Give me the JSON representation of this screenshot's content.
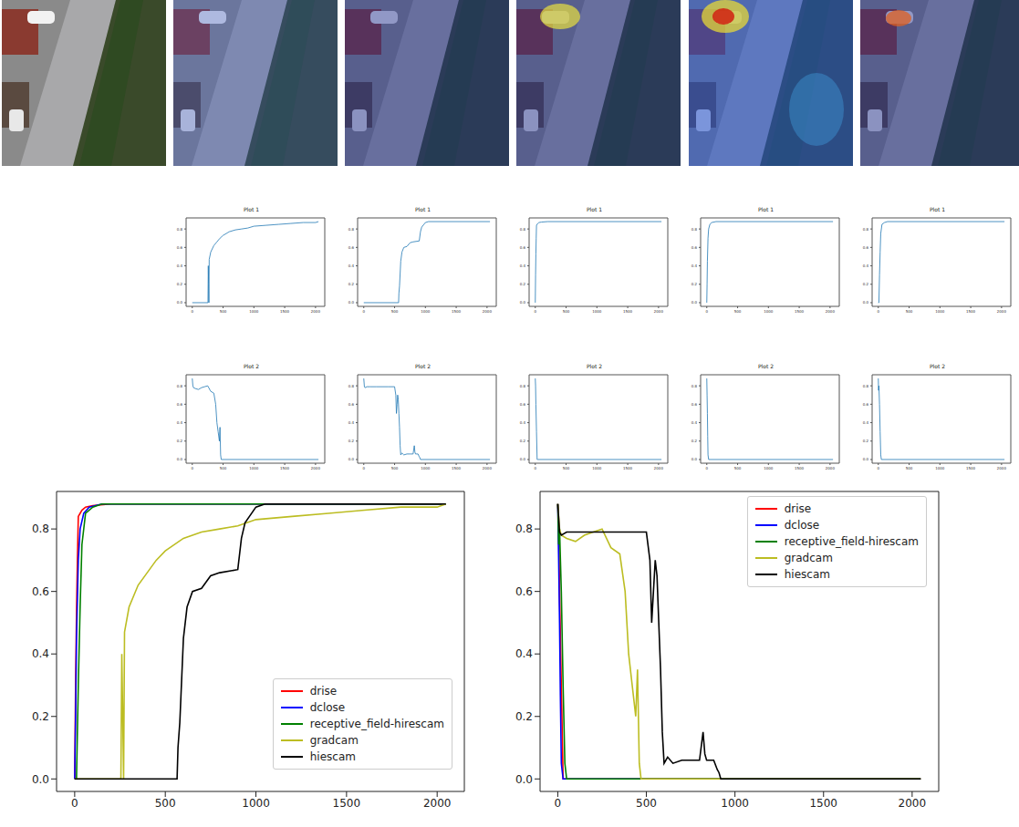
{
  "chart_data": [
    {
      "type": "line",
      "title": "Plot 1",
      "color": "#1f77b4",
      "xlim": [
        -100,
        2150
      ],
      "ylim": [
        -0.04,
        0.92
      ],
      "xticks": [
        0,
        500,
        1000,
        1500,
        2000
      ],
      "yticks": [
        {
          "value": 0,
          "label": "0.0"
        },
        {
          "value": 0.2,
          "label": "0.2"
        },
        {
          "value": 0.4,
          "label": "0.4"
        },
        {
          "value": 0.6,
          "label": "0.6"
        },
        {
          "value": 0.8,
          "label": "0.8"
        }
      ],
      "x": [
        0,
        255,
        260,
        265,
        270,
        275,
        300,
        350,
        400,
        450,
        500,
        600,
        700,
        800,
        900,
        1000,
        1200,
        1400,
        1600,
        1800,
        2000,
        2048
      ],
      "values": [
        0,
        0,
        0.4,
        0.2,
        0,
        0.47,
        0.55,
        0.62,
        0.66,
        0.7,
        0.73,
        0.77,
        0.79,
        0.8,
        0.81,
        0.83,
        0.84,
        0.85,
        0.86,
        0.87,
        0.87,
        0.88
      ]
    },
    {
      "type": "line",
      "title": "Plot 1",
      "color": "#1f77b4",
      "xlim": [
        -100,
        2150
      ],
      "ylim": [
        -0.04,
        0.92
      ],
      "xticks": [
        0,
        500,
        1000,
        1500,
        2000
      ],
      "yticks": [
        {
          "value": 0,
          "label": "0.0"
        },
        {
          "value": 0.2,
          "label": "0.2"
        },
        {
          "value": 0.4,
          "label": "0.4"
        },
        {
          "value": 0.6,
          "label": "0.6"
        },
        {
          "value": 0.8,
          "label": "0.8"
        }
      ],
      "x": [
        0,
        565,
        570,
        580,
        600,
        620,
        650,
        700,
        750,
        800,
        900,
        920,
        940,
        1000,
        1050,
        2048
      ],
      "values": [
        0,
        0,
        0.1,
        0.18,
        0.45,
        0.55,
        0.6,
        0.61,
        0.65,
        0.66,
        0.67,
        0.77,
        0.82,
        0.87,
        0.88,
        0.88
      ]
    },
    {
      "type": "line",
      "title": "Plot 1",
      "color": "#1f77b4",
      "xlim": [
        -100,
        2150
      ],
      "ylim": [
        -0.04,
        0.92
      ],
      "xticks": [
        0,
        500,
        1000,
        1500,
        2000
      ],
      "yticks": [
        {
          "value": 0,
          "label": "0.0"
        },
        {
          "value": 0.2,
          "label": "0.2"
        },
        {
          "value": 0.4,
          "label": "0.4"
        },
        {
          "value": 0.6,
          "label": "0.6"
        },
        {
          "value": 0.8,
          "label": "0.8"
        }
      ],
      "x": [
        0,
        5,
        10,
        15,
        20,
        30,
        40,
        60,
        100,
        200,
        2048
      ],
      "values": [
        0,
        0.3,
        0.53,
        0.7,
        0.84,
        0.85,
        0.86,
        0.87,
        0.875,
        0.88,
        0.88
      ]
    },
    {
      "type": "line",
      "title": "Plot 1",
      "color": "#1f77b4",
      "xlim": [
        -100,
        2150
      ],
      "ylim": [
        -0.04,
        0.92
      ],
      "xticks": [
        0,
        500,
        1000,
        1500,
        2000
      ],
      "yticks": [
        {
          "value": 0,
          "label": "0.0"
        },
        {
          "value": 0.2,
          "label": "0.2"
        },
        {
          "value": 0.4,
          "label": "0.4"
        },
        {
          "value": 0.6,
          "label": "0.6"
        },
        {
          "value": 0.8,
          "label": "0.8"
        }
      ],
      "x": [
        0,
        5,
        10,
        20,
        30,
        50,
        80,
        150,
        2048
      ],
      "values": [
        0,
        0.2,
        0.45,
        0.7,
        0.8,
        0.85,
        0.87,
        0.88,
        0.88
      ]
    },
    {
      "type": "line",
      "title": "Plot 1",
      "color": "#1f77b4",
      "xlim": [
        -100,
        2150
      ],
      "ylim": [
        -0.04,
        0.92
      ],
      "xticks": [
        0,
        500,
        1000,
        1500,
        2000
      ],
      "yticks": [
        {
          "value": 0,
          "label": "0.0"
        },
        {
          "value": 0.2,
          "label": "0.2"
        },
        {
          "value": 0.4,
          "label": "0.4"
        },
        {
          "value": 0.6,
          "label": "0.6"
        },
        {
          "value": 0.8,
          "label": "0.8"
        }
      ],
      "x": [
        0,
        10,
        20,
        30,
        40,
        60,
        100,
        150,
        2048
      ],
      "values": [
        0,
        0,
        0.3,
        0.55,
        0.75,
        0.85,
        0.87,
        0.88,
        0.88
      ]
    },
    {
      "type": "line",
      "title": "Plot 2",
      "color": "#1f77b4",
      "xlim": [
        -100,
        2150
      ],
      "ylim": [
        -0.04,
        0.92
      ],
      "xticks": [
        0,
        500,
        1000,
        1500,
        2000
      ],
      "yticks": [
        {
          "value": 0,
          "label": "0.0"
        },
        {
          "value": 0.2,
          "label": "0.2"
        },
        {
          "value": 0.4,
          "label": "0.4"
        },
        {
          "value": 0.6,
          "label": "0.6"
        },
        {
          "value": 0.8,
          "label": "0.8"
        }
      ],
      "x": [
        0,
        10,
        20,
        50,
        100,
        150,
        200,
        250,
        300,
        350,
        380,
        400,
        420,
        440,
        450,
        460,
        470,
        2048
      ],
      "values": [
        0.88,
        0.8,
        0.78,
        0.77,
        0.76,
        0.78,
        0.79,
        0.8,
        0.74,
        0.72,
        0.6,
        0.4,
        0.3,
        0.2,
        0.35,
        0.05,
        0,
        0
      ]
    },
    {
      "type": "line",
      "title": "Plot 2",
      "color": "#1f77b4",
      "xlim": [
        -100,
        2150
      ],
      "ylim": [
        -0.04,
        0.92
      ],
      "xticks": [
        0,
        500,
        1000,
        1500,
        2000
      ],
      "yticks": [
        {
          "value": 0,
          "label": "0.0"
        },
        {
          "value": 0.2,
          "label": "0.2"
        },
        {
          "value": 0.4,
          "label": "0.4"
        },
        {
          "value": 0.6,
          "label": "0.6"
        },
        {
          "value": 0.8,
          "label": "0.8"
        }
      ],
      "x": [
        0,
        10,
        20,
        50,
        100,
        200,
        300,
        400,
        500,
        520,
        530,
        540,
        550,
        560,
        570,
        580,
        590,
        600,
        620,
        650,
        700,
        750,
        800,
        820,
        830,
        840,
        850,
        880,
        900,
        910,
        920,
        2048
      ],
      "values": [
        0.88,
        0.79,
        0.78,
        0.79,
        0.79,
        0.79,
        0.79,
        0.79,
        0.79,
        0.7,
        0.5,
        0.6,
        0.7,
        0.65,
        0.5,
        0.35,
        0.15,
        0.05,
        0.07,
        0.05,
        0.06,
        0.06,
        0.06,
        0.15,
        0.08,
        0.06,
        0.06,
        0.06,
        0.03,
        0.02,
        0,
        0
      ]
    },
    {
      "type": "line",
      "title": "Plot 2",
      "color": "#1f77b4",
      "xlim": [
        -100,
        2150
      ],
      "ylim": [
        -0.04,
        0.92
      ],
      "xticks": [
        0,
        500,
        1000,
        1500,
        2000
      ],
      "yticks": [
        {
          "value": 0,
          "label": "0.0"
        },
        {
          "value": 0.2,
          "label": "0.2"
        },
        {
          "value": 0.4,
          "label": "0.4"
        },
        {
          "value": 0.6,
          "label": "0.6"
        },
        {
          "value": 0.8,
          "label": "0.8"
        }
      ],
      "x": [
        0,
        5,
        10,
        20,
        30,
        40,
        2048
      ],
      "values": [
        0.88,
        0.8,
        0.6,
        0.3,
        0,
        0,
        0
      ]
    },
    {
      "type": "line",
      "title": "Plot 2",
      "color": "#1f77b4",
      "xlim": [
        -100,
        2150
      ],
      "ylim": [
        -0.04,
        0.92
      ],
      "xticks": [
        0,
        500,
        1000,
        1500,
        2000
      ],
      "yticks": [
        {
          "value": 0,
          "label": "0.0"
        },
        {
          "value": 0.2,
          "label": "0.2"
        },
        {
          "value": 0.4,
          "label": "0.4"
        },
        {
          "value": 0.6,
          "label": "0.6"
        },
        {
          "value": 0.8,
          "label": "0.8"
        }
      ],
      "x": [
        0,
        5,
        10,
        15,
        20,
        30,
        2048
      ],
      "values": [
        0.88,
        0.7,
        0.5,
        0.25,
        0.05,
        0,
        0
      ]
    },
    {
      "type": "line",
      "title": "Plot 2",
      "color": "#1f77b4",
      "xlim": [
        -100,
        2150
      ],
      "ylim": [
        -0.04,
        0.92
      ],
      "xticks": [
        0,
        500,
        1000,
        1500,
        2000
      ],
      "yticks": [
        {
          "value": 0,
          "label": "0.0"
        },
        {
          "value": 0.2,
          "label": "0.2"
        },
        {
          "value": 0.4,
          "label": "0.4"
        },
        {
          "value": 0.6,
          "label": "0.6"
        },
        {
          "value": 0.8,
          "label": "0.8"
        }
      ],
      "x": [
        0,
        5,
        10,
        20,
        30,
        40,
        50,
        2048
      ],
      "values": [
        0.88,
        0.75,
        0.8,
        0.6,
        0.3,
        0.05,
        0,
        0
      ]
    },
    {
      "type": "line",
      "legend": "lower right",
      "xlim": [
        -100,
        2150
      ],
      "ylim": [
        -0.04,
        0.92
      ],
      "xticks": [
        0,
        500,
        1000,
        1500,
        2000
      ],
      "yticks": [
        {
          "value": 0,
          "label": "0.0"
        },
        {
          "value": 0.2,
          "label": "0.2"
        },
        {
          "value": 0.4,
          "label": "0.4"
        },
        {
          "value": 0.6,
          "label": "0.6"
        },
        {
          "value": 0.8,
          "label": "0.8"
        }
      ],
      "series": [
        {
          "name": "drise",
          "color": "red",
          "x": [
            0,
            5,
            10,
            15,
            20,
            30,
            40,
            60,
            100,
            200,
            2048
          ],
          "values": [
            0,
            0.3,
            0.53,
            0.7,
            0.84,
            0.85,
            0.86,
            0.87,
            0.875,
            0.88,
            0.88
          ]
        },
        {
          "name": "dclose",
          "color": "blue",
          "x": [
            0,
            5,
            10,
            20,
            30,
            50,
            80,
            150,
            2048
          ],
          "values": [
            0,
            0.2,
            0.45,
            0.7,
            0.8,
            0.85,
            0.87,
            0.88,
            0.88
          ]
        },
        {
          "name": "receptive_field-hirescam",
          "color": "green",
          "x": [
            0,
            10,
            20,
            30,
            40,
            60,
            100,
            150,
            2048
          ],
          "values": [
            0,
            0,
            0.3,
            0.55,
            0.75,
            0.85,
            0.87,
            0.88,
            0.88
          ]
        },
        {
          "name": "gradcam",
          "color": "#bcbd22",
          "x": [
            0,
            255,
            260,
            265,
            270,
            275,
            300,
            350,
            400,
            450,
            500,
            600,
            700,
            800,
            900,
            1000,
            1200,
            1400,
            1600,
            1800,
            2000,
            2048
          ],
          "values": [
            0,
            0,
            0.4,
            0.2,
            0,
            0.47,
            0.55,
            0.62,
            0.66,
            0.7,
            0.73,
            0.77,
            0.79,
            0.8,
            0.81,
            0.83,
            0.84,
            0.85,
            0.86,
            0.87,
            0.87,
            0.88
          ]
        },
        {
          "name": "hiescam",
          "color": "black",
          "x": [
            0,
            565,
            570,
            580,
            600,
            620,
            650,
            700,
            750,
            800,
            900,
            920,
            940,
            1000,
            1050,
            2048
          ],
          "values": [
            0,
            0,
            0.1,
            0.18,
            0.45,
            0.55,
            0.6,
            0.61,
            0.65,
            0.66,
            0.67,
            0.77,
            0.82,
            0.87,
            0.88,
            0.88
          ]
        }
      ]
    },
    {
      "type": "line",
      "legend": "upper right",
      "xlim": [
        -100,
        2150
      ],
      "ylim": [
        -0.04,
        0.92
      ],
      "xticks": [
        0,
        500,
        1000,
        1500,
        2000
      ],
      "yticks": [
        {
          "value": 0,
          "label": "0.0"
        },
        {
          "value": 0.2,
          "label": "0.2"
        },
        {
          "value": 0.4,
          "label": "0.4"
        },
        {
          "value": 0.6,
          "label": "0.6"
        },
        {
          "value": 0.8,
          "label": "0.8"
        }
      ],
      "series": [
        {
          "name": "drise",
          "color": "red",
          "x": [
            0,
            5,
            10,
            20,
            30,
            40,
            2048
          ],
          "values": [
            0.88,
            0.8,
            0.6,
            0.3,
            0,
            0,
            0
          ]
        },
        {
          "name": "dclose",
          "color": "blue",
          "x": [
            0,
            5,
            10,
            15,
            20,
            30,
            2048
          ],
          "values": [
            0.88,
            0.7,
            0.5,
            0.25,
            0.05,
            0,
            0
          ]
        },
        {
          "name": "receptive_field-hirescam",
          "color": "green",
          "x": [
            0,
            5,
            10,
            20,
            30,
            40,
            50,
            2048
          ],
          "values": [
            0.88,
            0.75,
            0.8,
            0.6,
            0.3,
            0.05,
            0,
            0
          ]
        },
        {
          "name": "gradcam",
          "color": "#bcbd22",
          "x": [
            0,
            10,
            20,
            50,
            100,
            150,
            200,
            250,
            300,
            350,
            380,
            400,
            420,
            440,
            450,
            460,
            470,
            2048
          ],
          "values": [
            0.88,
            0.8,
            0.78,
            0.77,
            0.76,
            0.78,
            0.79,
            0.8,
            0.74,
            0.72,
            0.6,
            0.4,
            0.3,
            0.2,
            0.35,
            0.05,
            0,
            0
          ]
        },
        {
          "name": "hiescam",
          "color": "black",
          "x": [
            0,
            10,
            20,
            50,
            100,
            200,
            300,
            400,
            500,
            520,
            530,
            540,
            550,
            560,
            570,
            580,
            590,
            600,
            620,
            650,
            700,
            750,
            800,
            820,
            830,
            840,
            850,
            880,
            900,
            910,
            920,
            2048
          ],
          "values": [
            0.88,
            0.79,
            0.78,
            0.79,
            0.79,
            0.79,
            0.79,
            0.79,
            0.79,
            0.7,
            0.5,
            0.6,
            0.7,
            0.65,
            0.5,
            0.35,
            0.15,
            0.05,
            0.07,
            0.05,
            0.06,
            0.06,
            0.06,
            0.15,
            0.08,
            0.06,
            0.06,
            0.06,
            0.03,
            0.02,
            0,
            0
          ]
        }
      ]
    }
  ]
}
